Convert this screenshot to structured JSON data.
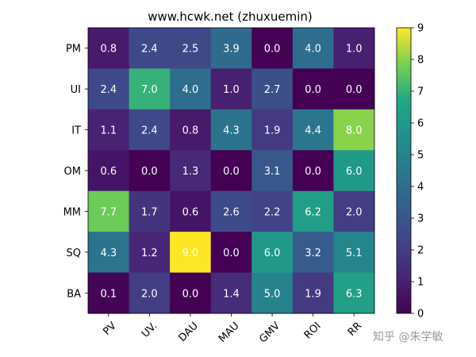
{
  "chart_data": {
    "type": "heatmap",
    "title": "www.hcwk.net (zhuxuemin)",
    "xlabel": "",
    "ylabel": "",
    "x_categories": [
      "PV",
      "UV.",
      "DAU",
      "MAU",
      "GMV",
      "ROI",
      "RR"
    ],
    "y_categories": [
      "PM",
      "UI",
      "IT",
      "OM",
      "MM",
      "SQ",
      "BA"
    ],
    "values": [
      [
        0.8,
        2.4,
        2.5,
        3.9,
        0.0,
        4.0,
        1.0
      ],
      [
        2.4,
        7.0,
        4.0,
        1.0,
        2.7,
        0.0,
        0.0
      ],
      [
        1.1,
        2.4,
        0.8,
        4.3,
        1.9,
        4.4,
        8.0
      ],
      [
        0.6,
        0.0,
        1.3,
        0.0,
        3.1,
        0.0,
        6.0
      ],
      [
        7.7,
        1.7,
        0.6,
        2.6,
        2.2,
        6.2,
        2.0
      ],
      [
        4.3,
        1.2,
        9.0,
        0.0,
        6.0,
        3.2,
        5.1
      ],
      [
        0.1,
        2.0,
        0.0,
        1.4,
        5.0,
        1.9,
        6.3
      ]
    ],
    "value_labels": [
      [
        "0.8",
        "2.4",
        "2.5",
        "3.9",
        "0.0",
        "4.0",
        "1.0"
      ],
      [
        "2.4",
        "7.0",
        "4.0",
        "1.0",
        "2.7",
        "0.0",
        "0.0"
      ],
      [
        "1.1",
        "2.4",
        "0.8",
        "4.3",
        "1.9",
        "4.4",
        "8.0"
      ],
      [
        "0.6",
        "0.0",
        "1.3",
        "0.0",
        "3.1",
        "0.0",
        "6.0"
      ],
      [
        "7.7",
        "1.7",
        "0.6",
        "2.6",
        "2.2",
        "6.2",
        "2.0"
      ],
      [
        "4.3",
        "1.2",
        "9.0",
        "0.0",
        "6.0",
        "3.2",
        "5.1"
      ],
      [
        "0.1",
        "2.0",
        "0.0",
        "1.4",
        "5.0",
        "1.9",
        "6.3"
      ]
    ],
    "colormap": "viridis",
    "vmin": 0,
    "vmax": 9,
    "colorbar_ticks": [
      "0",
      "1",
      "2",
      "3",
      "4",
      "5",
      "6",
      "7",
      "8",
      "9"
    ],
    "grid": false,
    "x_tick_rotation_deg": 45,
    "cell_text_color": "#ffffff"
  },
  "watermark": "知乎 @朱学敏"
}
